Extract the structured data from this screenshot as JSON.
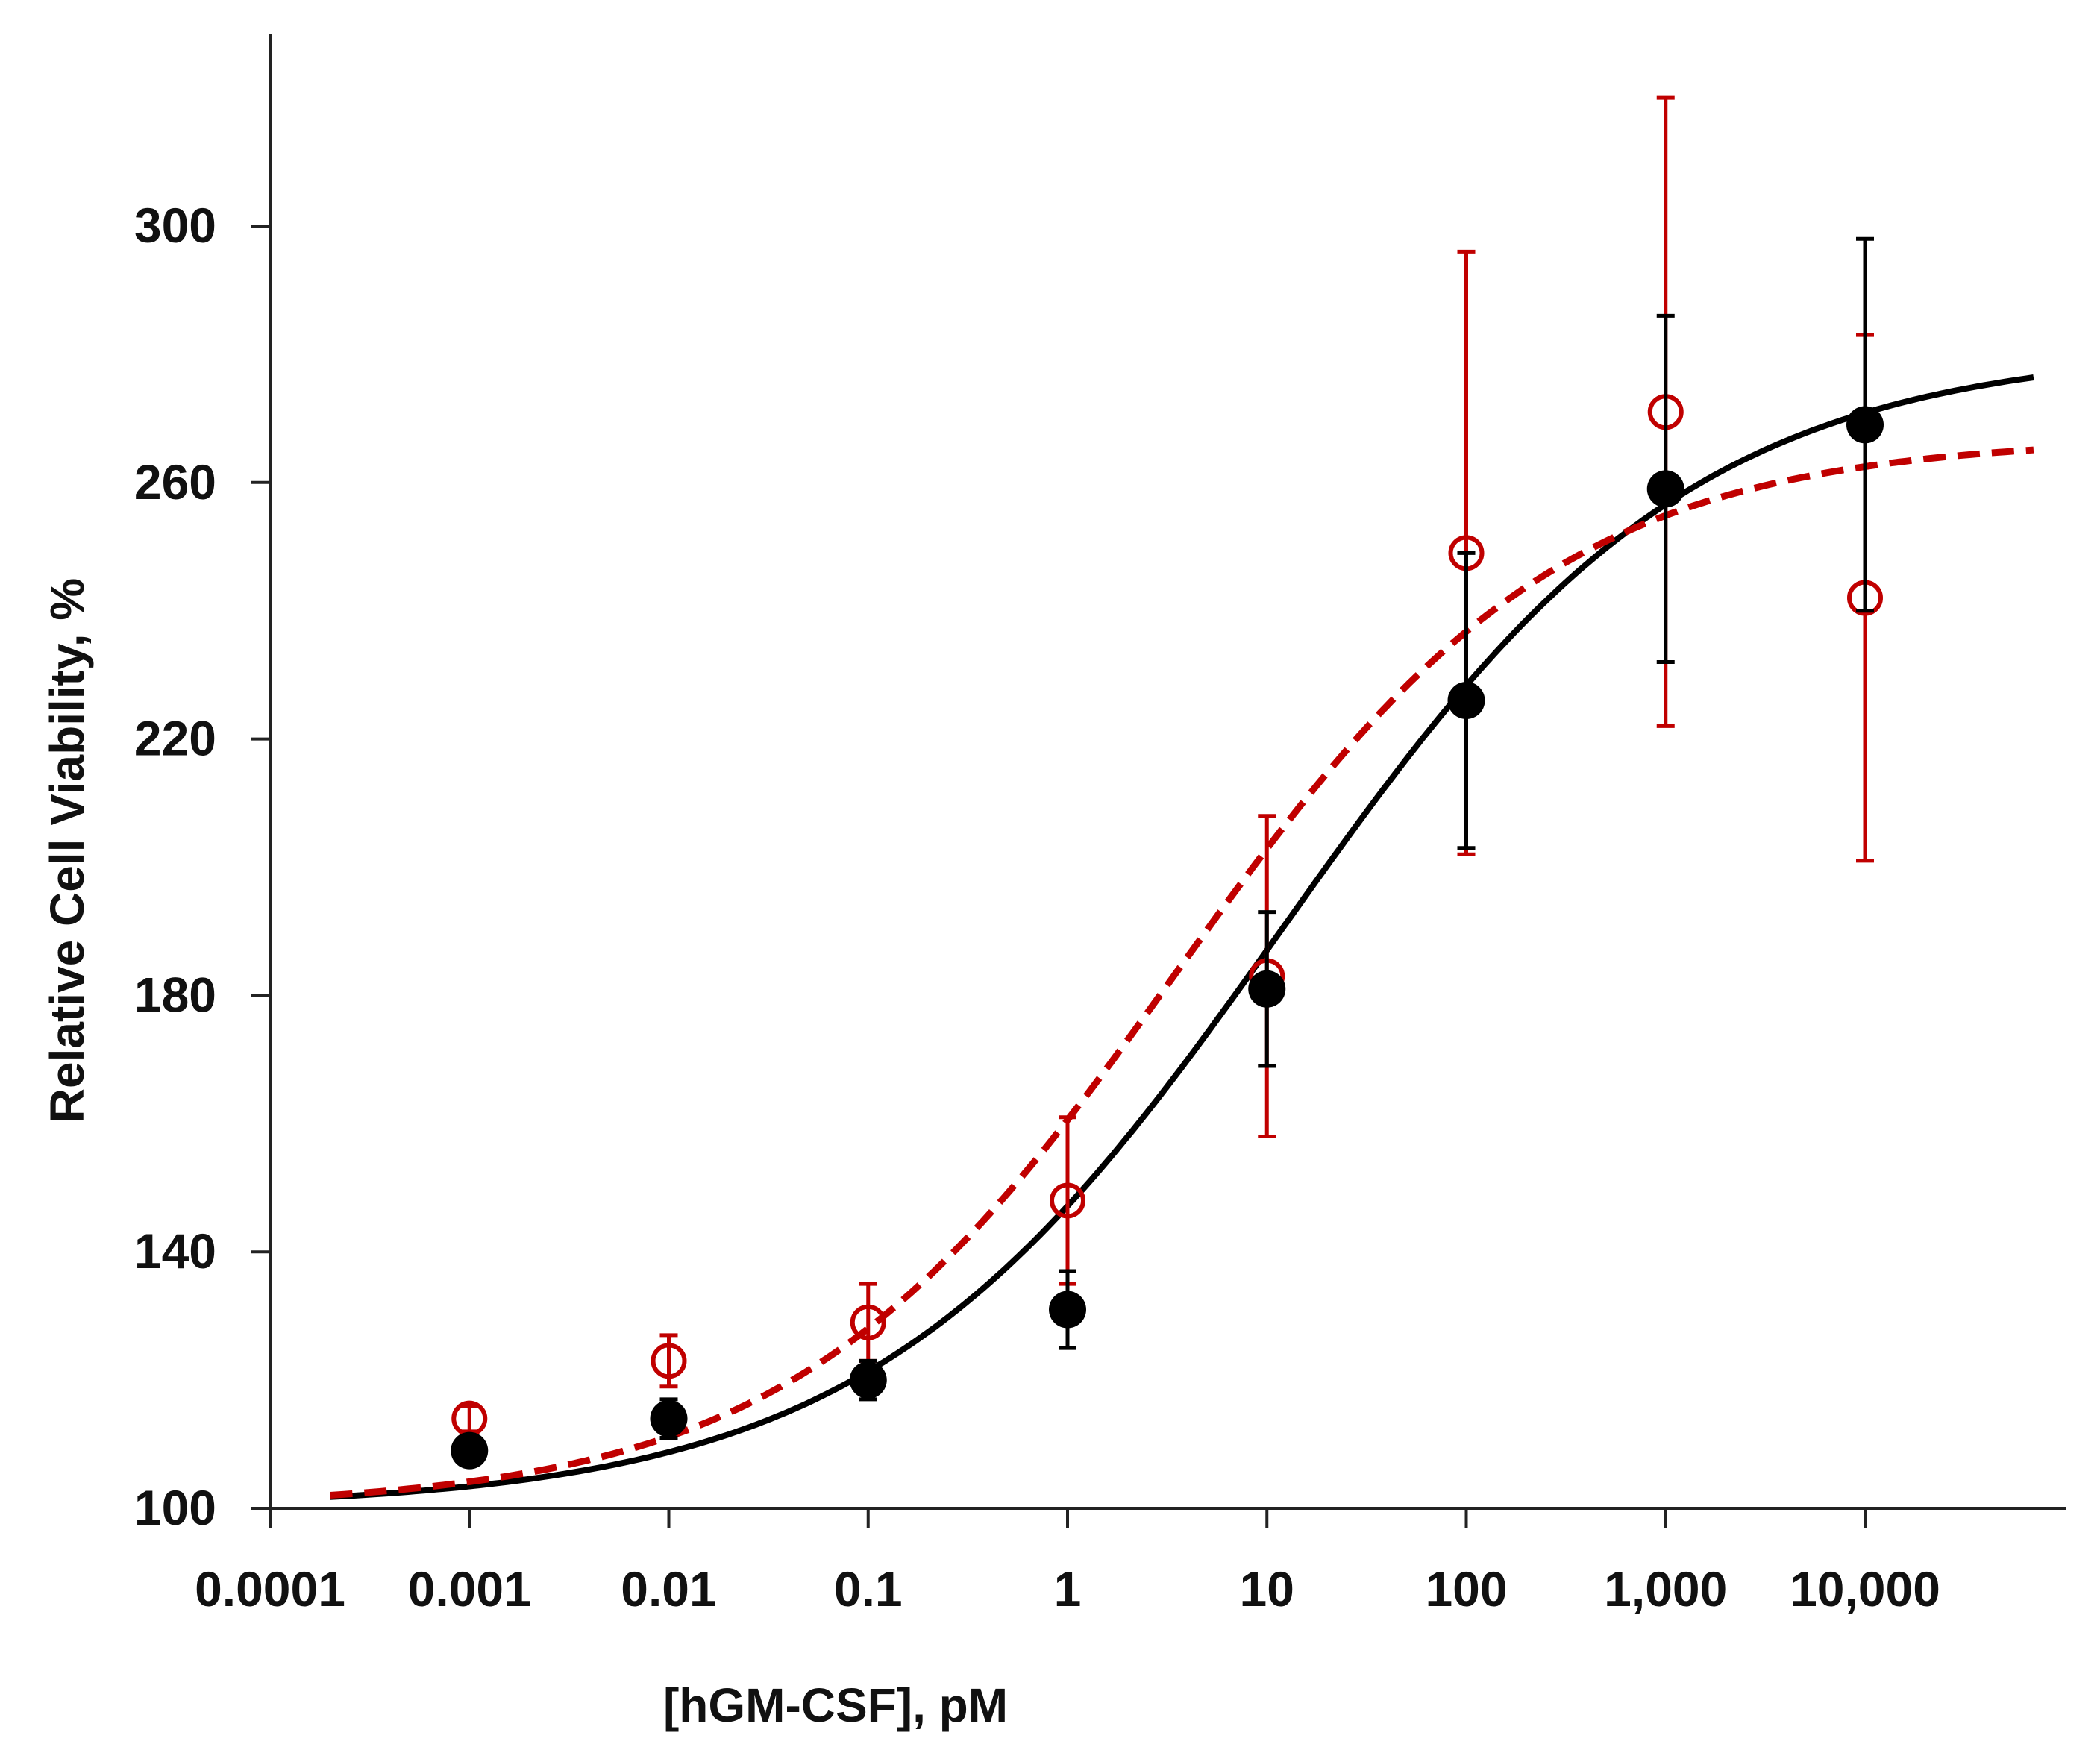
{
  "chart_data": {
    "type": "scatter",
    "xscale": "log",
    "xlabel": "[hGM-CSF], pM",
    "ylabel": "Relative Cell Viability, %",
    "xlim": [
      0.0002,
      70000
    ],
    "ylim": [
      100,
      330
    ],
    "x_ticks": [
      0.0001,
      0.001,
      0.01,
      0.1,
      1,
      10,
      100,
      1000,
      10000
    ],
    "x_tick_labels": [
      "0.0001",
      "0.001",
      "0.01",
      "0.1",
      "1",
      "10",
      "100",
      "1,000",
      "10,000"
    ],
    "y_ticks": [
      100,
      140,
      180,
      220,
      260,
      300
    ],
    "y_tick_labels": [
      "100",
      "140",
      "180",
      "220",
      "260",
      "300"
    ],
    "grid": false,
    "legend": "none",
    "series": [
      {
        "name": "filled",
        "color": "#000000",
        "marker": "filled-circle",
        "x": [
          0.001,
          0.01,
          0.1,
          1,
          10,
          100,
          1000,
          10000
        ],
        "y": [
          109,
          114,
          120,
          131,
          181,
          226,
          259,
          269
        ],
        "err": [
          0,
          3,
          3,
          6,
          12,
          23,
          27,
          29
        ]
      },
      {
        "name": "open",
        "color": "#c00000",
        "marker": "open-circle",
        "x": [
          0.001,
          0.01,
          0.1,
          1,
          10,
          100,
          1000,
          10000
        ],
        "y": [
          114,
          123,
          129,
          148,
          183,
          249,
          271,
          242
        ],
        "err": [
          2,
          4,
          6,
          13,
          25,
          47,
          49,
          41
        ]
      }
    ],
    "fits": [
      {
        "name": "filled-fit",
        "color": "#000000",
        "style": "solid",
        "bottom": 100,
        "top": 281,
        "ec50": 12,
        "hill": 0.42
      },
      {
        "name": "open-fit",
        "color": "#c00000",
        "style": "dashed",
        "bottom": 100,
        "top": 267,
        "ec50": 3.5,
        "hill": 0.45
      }
    ]
  }
}
